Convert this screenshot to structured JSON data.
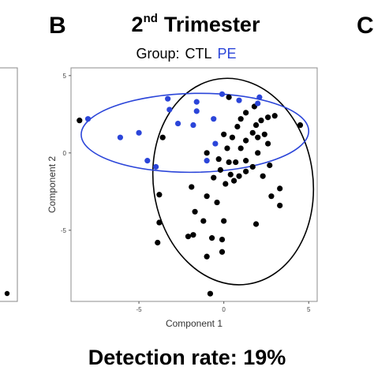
{
  "panel_letters": {
    "current": "B",
    "next_cropped": "C"
  },
  "title": {
    "prefix": "2",
    "superscript": "nd",
    "suffix": "Trimester"
  },
  "legend": {
    "label": "Group:",
    "items": [
      {
        "name": "CTL",
        "color": "#000000"
      },
      {
        "name": "PE",
        "color": "#2b45d9"
      }
    ]
  },
  "caption": "Detection rate: 19%",
  "chart_data": {
    "type": "scatter",
    "xlabel": "Component 1",
    "ylabel": "Component 2",
    "xlim": [
      -9,
      5.5
    ],
    "ylim": [
      -9.6,
      5.5
    ],
    "xticks": [
      -5,
      0,
      5
    ],
    "yticks": [
      5,
      0,
      -5
    ],
    "grid": false,
    "legend_position": "top",
    "series": [
      {
        "name": "CTL",
        "color": "#000000",
        "points": [
          [
            -8.5,
            2.1
          ],
          [
            0.3,
            3.6
          ],
          [
            1.3,
            2.6
          ],
          [
            1.8,
            3.0
          ],
          [
            3.0,
            2.4
          ],
          [
            2.6,
            2.3
          ],
          [
            2.2,
            2.1
          ],
          [
            1.0,
            2.2
          ],
          [
            1.9,
            1.8
          ],
          [
            4.5,
            1.8
          ],
          [
            0.8,
            1.7
          ],
          [
            0.0,
            1.2
          ],
          [
            1.7,
            1.3
          ],
          [
            2.4,
            1.2
          ],
          [
            0.5,
            1.0
          ],
          [
            2.0,
            1.0
          ],
          [
            -3.6,
            1.0
          ],
          [
            1.3,
            0.8
          ],
          [
            2.6,
            0.6
          ],
          [
            0.2,
            0.3
          ],
          [
            1.0,
            0.3
          ],
          [
            -1.0,
            0.0
          ],
          [
            2.0,
            0.0
          ],
          [
            -0.3,
            -0.4
          ],
          [
            1.3,
            -0.5
          ],
          [
            0.7,
            -0.6
          ],
          [
            0.3,
            -0.6
          ],
          [
            1.7,
            -0.9
          ],
          [
            2.7,
            -0.8
          ],
          [
            -0.2,
            -1.1
          ],
          [
            1.3,
            -1.2
          ],
          [
            0.4,
            -1.4
          ],
          [
            0.9,
            -1.5
          ],
          [
            2.3,
            -1.5
          ],
          [
            -0.6,
            -1.6
          ],
          [
            0.6,
            -1.8
          ],
          [
            0.1,
            -2.0
          ],
          [
            -1.9,
            -2.2
          ],
          [
            3.3,
            -2.3
          ],
          [
            -3.8,
            -2.7
          ],
          [
            -1.0,
            -2.8
          ],
          [
            2.8,
            -2.8
          ],
          [
            -0.4,
            -3.2
          ],
          [
            3.3,
            -3.4
          ],
          [
            -1.7,
            -3.8
          ],
          [
            -3.8,
            -4.5
          ],
          [
            -1.2,
            -4.4
          ],
          [
            0.0,
            -4.4
          ],
          [
            1.9,
            -4.6
          ],
          [
            -1.8,
            -5.3
          ],
          [
            -2.1,
            -5.4
          ],
          [
            -0.7,
            -5.5
          ],
          [
            -0.1,
            -5.6
          ],
          [
            -3.9,
            -5.8
          ],
          [
            -0.1,
            -6.4
          ],
          [
            -1.0,
            -6.7
          ],
          [
            -0.8,
            -9.1
          ]
        ]
      },
      {
        "name": "PE",
        "color": "#2b45d9",
        "points": [
          [
            -8.0,
            2.2
          ],
          [
            -3.3,
            3.5
          ],
          [
            -1.6,
            3.3
          ],
          [
            -0.1,
            3.8
          ],
          [
            -3.2,
            2.8
          ],
          [
            -1.6,
            2.7
          ],
          [
            -0.6,
            2.2
          ],
          [
            -2.7,
            1.9
          ],
          [
            -1.8,
            1.8
          ],
          [
            0.9,
            3.4
          ],
          [
            2.1,
            3.6
          ],
          [
            2.0,
            3.2
          ],
          [
            -5.0,
            1.3
          ],
          [
            -6.1,
            1.0
          ],
          [
            -4.5,
            -0.5
          ],
          [
            -4.0,
            -0.9
          ],
          [
            -0.5,
            0.6
          ],
          [
            -1.0,
            -0.5
          ]
        ]
      }
    ],
    "ellipses": [
      {
        "group": "CTL",
        "center": [
          0.55,
          -1.85
        ],
        "semi_axis_x": 4.7,
        "semi_axis_y": 6.7,
        "rotation_deg": 8,
        "color": "#000000"
      },
      {
        "group": "PE",
        "center": [
          -1.7,
          1.3
        ],
        "semi_axis_x": 6.7,
        "semi_axis_y": 2.55,
        "rotation_deg": 1,
        "color": "#2b45d9"
      }
    ]
  }
}
